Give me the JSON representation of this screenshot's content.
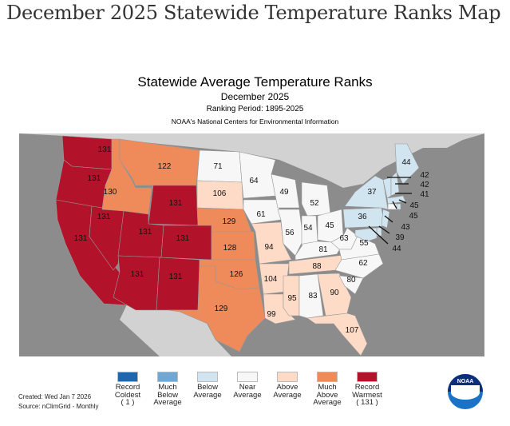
{
  "page_title": "December 2025 Statewide Temperature Ranks Map",
  "map": {
    "title": "Statewide Average Temperature Ranks",
    "subtitle": "December 2025",
    "ranking_period": "Ranking Period: 1895-2025",
    "agency": "NOAA's National Centers for Environmental Information",
    "created": "Created: Wed Jan  7 2026",
    "source": "Source: nClimGrid - Monthly",
    "logo_text": "NOAA"
  },
  "legend": [
    {
      "key": "record_coldest",
      "line1": "Record",
      "line2": "Coldest",
      "line3": "( 1 )",
      "color": "#2166ac"
    },
    {
      "key": "much_below",
      "line1": "Much",
      "line2": "Below",
      "line3": "Average",
      "color": "#6fa8d3"
    },
    {
      "key": "below",
      "line1": "Below",
      "line2": "Average",
      "line3": "",
      "color": "#d1e5f0"
    },
    {
      "key": "near",
      "line1": "Near",
      "line2": "Average",
      "line3": "",
      "color": "#f7f7f7"
    },
    {
      "key": "above",
      "line1": "Above",
      "line2": "Average",
      "line3": "",
      "color": "#fddbc7"
    },
    {
      "key": "much_above",
      "line1": "Much",
      "line2": "Above",
      "line3": "Average",
      "color": "#ef8a5a"
    },
    {
      "key": "record_warmest",
      "line1": "Record",
      "line2": "Warmest",
      "line3": "( 131 )",
      "color": "#b2132b"
    }
  ],
  "states": [
    {
      "abbr": "WA",
      "rank": "131",
      "cat": 6
    },
    {
      "abbr": "OR",
      "rank": "131",
      "cat": 6
    },
    {
      "abbr": "CA",
      "rank": "131",
      "cat": 6
    },
    {
      "abbr": "NV",
      "rank": "131",
      "cat": 6
    },
    {
      "abbr": "ID",
      "rank": "130",
      "cat": 5
    },
    {
      "abbr": "MT",
      "rank": "122",
      "cat": 5
    },
    {
      "abbr": "WY",
      "rank": "131",
      "cat": 6
    },
    {
      "abbr": "UT",
      "rank": "131",
      "cat": 6
    },
    {
      "abbr": "CO",
      "rank": "131",
      "cat": 6
    },
    {
      "abbr": "AZ",
      "rank": "131",
      "cat": 6
    },
    {
      "abbr": "NM",
      "rank": "131",
      "cat": 6
    },
    {
      "abbr": "ND",
      "rank": "71",
      "cat": 3
    },
    {
      "abbr": "SD",
      "rank": "106",
      "cat": 4
    },
    {
      "abbr": "NE",
      "rank": "129",
      "cat": 5
    },
    {
      "abbr": "KS",
      "rank": "128",
      "cat": 5
    },
    {
      "abbr": "OK",
      "rank": "126",
      "cat": 5
    },
    {
      "abbr": "TX",
      "rank": "129",
      "cat": 5
    },
    {
      "abbr": "MN",
      "rank": "64",
      "cat": 3
    },
    {
      "abbr": "IA",
      "rank": "61",
      "cat": 3
    },
    {
      "abbr": "WI",
      "rank": "49",
      "cat": 3
    },
    {
      "abbr": "MI",
      "rank": "52",
      "cat": 3
    },
    {
      "abbr": "IL",
      "rank": "56",
      "cat": 3
    },
    {
      "abbr": "IN",
      "rank": "54",
      "cat": 3
    },
    {
      "abbr": "OH",
      "rank": "45",
      "cat": 3
    },
    {
      "abbr": "MO",
      "rank": "94",
      "cat": 4
    },
    {
      "abbr": "AR",
      "rank": "104",
      "cat": 4
    },
    {
      "abbr": "LA",
      "rank": "99",
      "cat": 4
    },
    {
      "abbr": "MS",
      "rank": "95",
      "cat": 4
    },
    {
      "abbr": "AL",
      "rank": "83",
      "cat": 3
    },
    {
      "abbr": "GA",
      "rank": "90",
      "cat": 4
    },
    {
      "abbr": "FL",
      "rank": "107",
      "cat": 4
    },
    {
      "abbr": "TN",
      "rank": "88",
      "cat": 4
    },
    {
      "abbr": "KY",
      "rank": "81",
      "cat": 3
    },
    {
      "abbr": "WV",
      "rank": "63",
      "cat": 3
    },
    {
      "abbr": "VA",
      "rank": "55",
      "cat": 3
    },
    {
      "abbr": "NC",
      "rank": "62",
      "cat": 3
    },
    {
      "abbr": "SC",
      "rank": "80",
      "cat": 3
    },
    {
      "abbr": "PA",
      "rank": "36",
      "cat": 2
    },
    {
      "abbr": "NY",
      "rank": "37",
      "cat": 2
    },
    {
      "abbr": "ME",
      "rank": "44",
      "cat": 2
    },
    {
      "abbr": "VT",
      "rank": "42",
      "cat": 2
    },
    {
      "abbr": "NH",
      "rank": "42",
      "cat": 2
    },
    {
      "abbr": "MA",
      "rank": "41",
      "cat": 2
    },
    {
      "abbr": "RI",
      "rank": "45",
      "cat": 2
    },
    {
      "abbr": "CT",
      "rank": "45",
      "cat": 3
    },
    {
      "abbr": "NJ",
      "rank": "43",
      "cat": 2
    },
    {
      "abbr": "DE",
      "rank": "39",
      "cat": 2
    },
    {
      "abbr": "MD",
      "rank": "44",
      "cat": 2
    }
  ]
}
